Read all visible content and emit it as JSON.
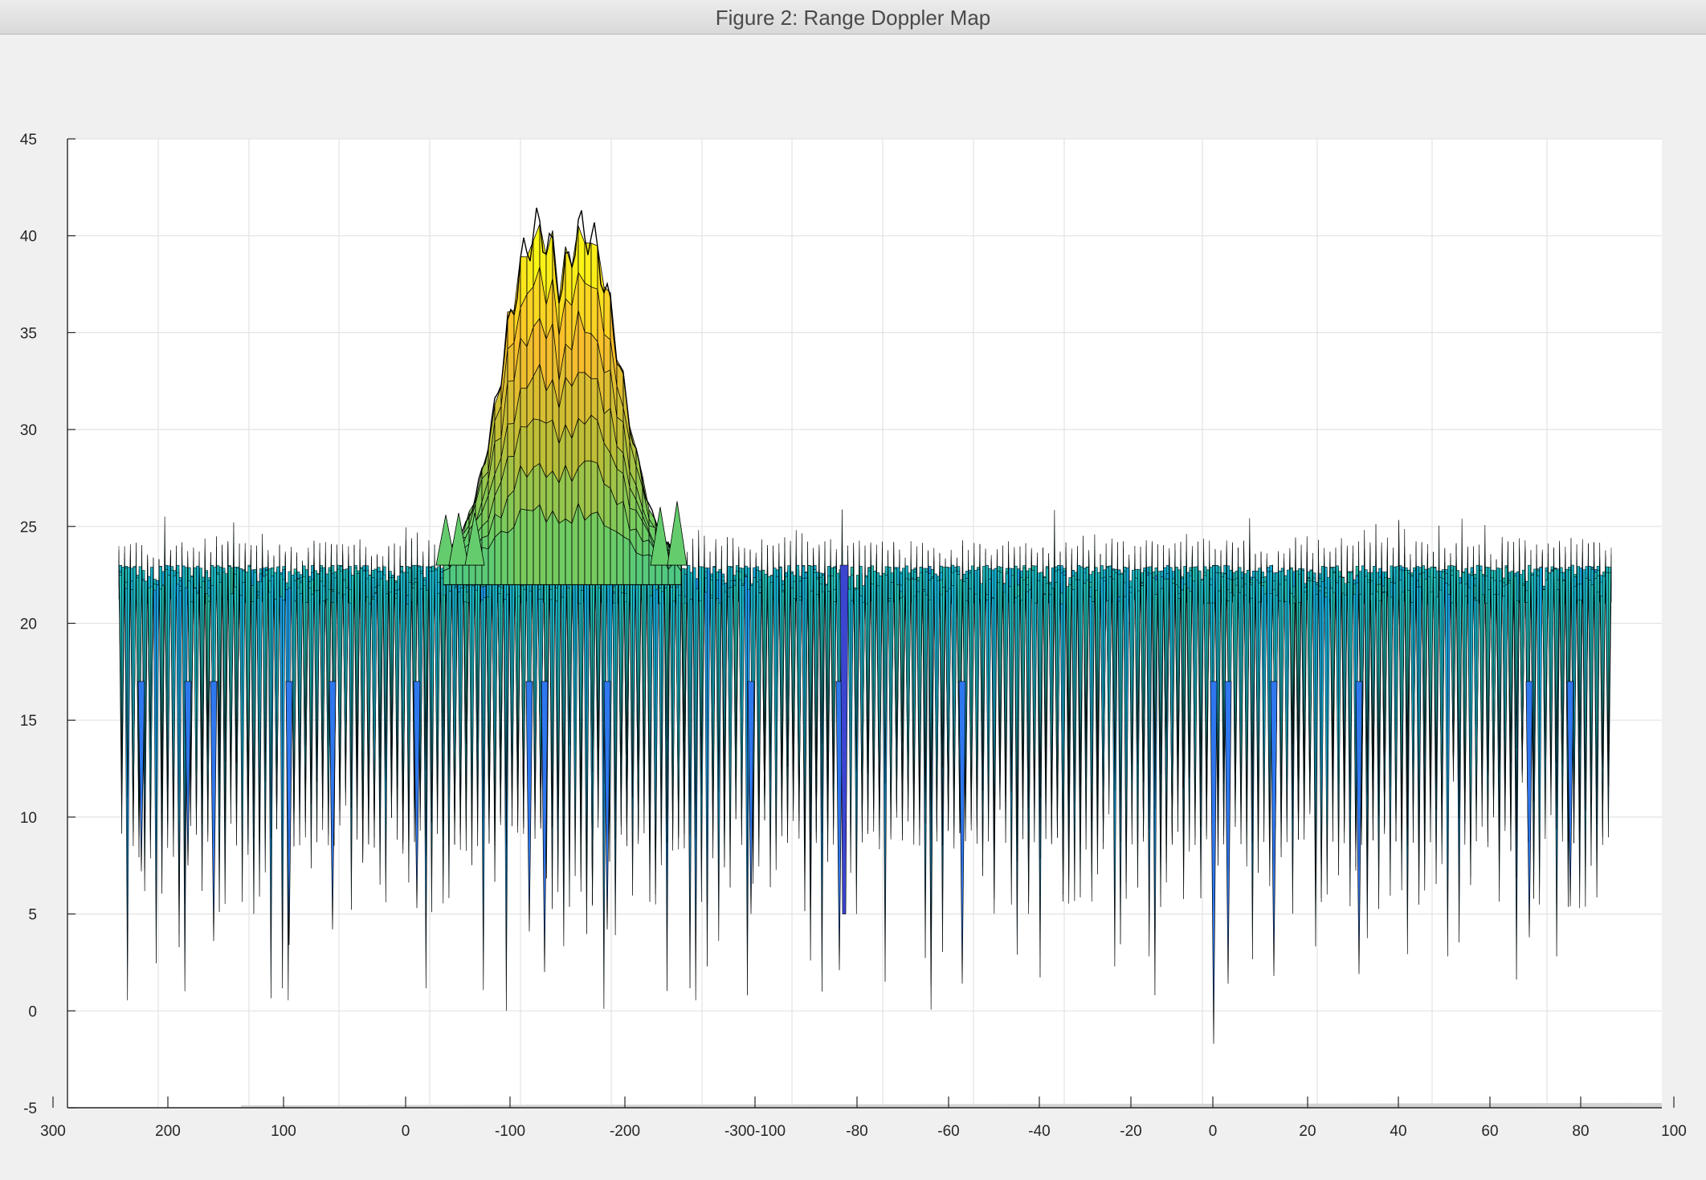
{
  "window": {
    "title": "Figure 2: Range Doppler Map"
  },
  "chart_data": {
    "type": "surface",
    "title": "",
    "xlabel": "",
    "ylabel": "",
    "zlabel": "",
    "view": "3-D surface seen nearly edge-on; range axis and doppler axis share the bottom edge",
    "colormap": "parula",
    "edgecolor": "#000000",
    "grid": true,
    "zlim": [
      -5,
      45
    ],
    "z_ticks": [
      -5,
      0,
      5,
      10,
      15,
      20,
      25,
      30,
      35,
      40,
      45
    ],
    "range_ticks": [
      "300",
      "200",
      "100",
      "0",
      "-100",
      "-200",
      "-300"
    ],
    "doppler_ticks": [
      "-100",
      "-80",
      "-60",
      "-40",
      "-20",
      "0",
      "20",
      "40",
      "60",
      "80",
      "100"
    ],
    "bottom_tick_labels": [
      "300",
      "200",
      "100",
      "0",
      "-100",
      "-200",
      "-300-100",
      "-80",
      "-60",
      "-40",
      "-20",
      "0",
      "20",
      "40",
      "60",
      "80",
      "100"
    ],
    "noise_floor": {
      "typical_top": 23.5,
      "max_top": 25,
      "typical_low": 10,
      "min": -1.7
    },
    "peak": {
      "range": -150,
      "z_max": 40.3,
      "base": 23
    }
  }
}
